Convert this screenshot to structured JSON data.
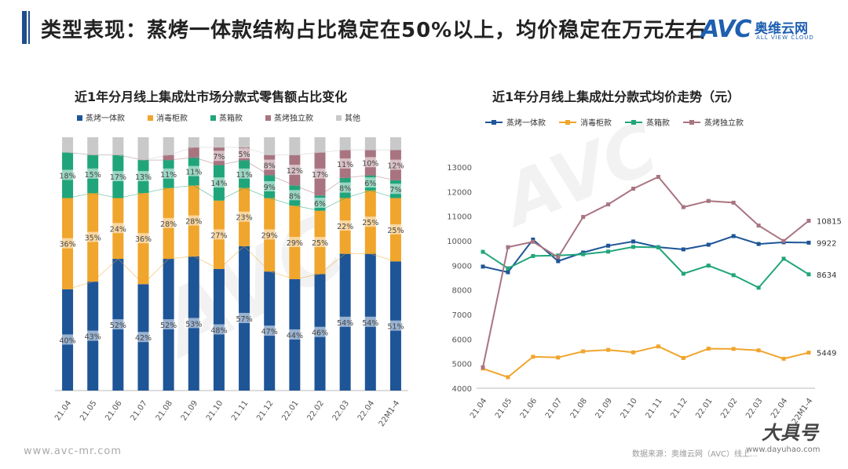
{
  "page": {
    "title": "类型表现：蒸烤一体款结构占比稳定在50%以上，均价稳定在万元左右",
    "footer_url": "www.avc-mr.com",
    "footer_source": "数据来源：奥维云网（AVC）线上...",
    "stamp_text": "大具号",
    "stamp_sub": "www.dayuhao.com"
  },
  "logo": {
    "avc": "AVC",
    "cn": "奥维云网",
    "sub": "ALL VIEW CLOUD"
  },
  "colors": {
    "s1": "#1e5597",
    "s2": "#f0a52c",
    "s3": "#20a57a",
    "s4": "#a87480",
    "s5": "#c9c9c9"
  },
  "chart_data": [
    {
      "type": "bar",
      "stacked": true,
      "percent": true,
      "title": "近1年分月线上集成灶市场分款式零售额占比变化",
      "categories": [
        "21.04",
        "21.05",
        "21.06",
        "21.07",
        "21.08",
        "21.09",
        "21.10",
        "21.11",
        "21.12",
        "22.01",
        "22.02",
        "22.03",
        "22.04",
        "22M1-4"
      ],
      "ylim": [
        0,
        100
      ],
      "legend_position": "top",
      "series": [
        {
          "name": "蒸烤一体款",
          "color": "#1e5597",
          "values": [
            40,
            43,
            52,
            42,
            52,
            53,
            48,
            57,
            47,
            44,
            46,
            54,
            54,
            51
          ],
          "labels": [
            "40%",
            "43%",
            "52%",
            "42%",
            "52%",
            "53%",
            "48%",
            "57%",
            "47%",
            "44%",
            "46%",
            "54%",
            "54%",
            "51%"
          ]
        },
        {
          "name": "消毒柜款",
          "color": "#f0a52c",
          "values": [
            36,
            35,
            24,
            36,
            28,
            28,
            27,
            23,
            29,
            29,
            25,
            22,
            25,
            25
          ],
          "labels": [
            "36%",
            "35%",
            "24%",
            "36%",
            "28%",
            "28%",
            "27%",
            "23%",
            "29%",
            "29%",
            "25%",
            "22%",
            "25%",
            "25%"
          ]
        },
        {
          "name": "蒸箱款",
          "color": "#20a57a",
          "values": [
            18,
            15,
            17,
            13,
            11,
            11,
            14,
            11,
            9,
            8,
            6,
            8,
            6,
            7
          ],
          "labels": [
            "18%",
            "15%",
            "17%",
            "13%",
            "11%",
            "11%",
            "14%",
            "11%",
            "9%",
            "8%",
            "6%",
            "8%",
            "6%",
            "7%"
          ]
        },
        {
          "name": "蒸烤独立款",
          "color": "#a87480",
          "values": [
            0,
            0,
            0,
            0,
            2,
            4,
            7,
            5,
            8,
            12,
            17,
            11,
            10,
            12
          ],
          "labels": [
            "",
            "",
            "",
            "",
            "",
            "",
            "7%",
            "5%",
            "8%",
            "12%",
            "17%",
            "11%",
            "10%",
            "12%"
          ]
        },
        {
          "name": "其他",
          "color": "#c9c9c9",
          "values": [
            6,
            7,
            7,
            9,
            7,
            4,
            4,
            4,
            7,
            7,
            6,
            5,
            5,
            5
          ],
          "labels": [
            "",
            "",
            "",
            "",
            "",
            "",
            "",
            "",
            "",
            "",
            "",
            "",
            "",
            ""
          ]
        }
      ]
    },
    {
      "type": "line",
      "title": "近1年分月线上集成灶分款式均价走势（元）",
      "categories": [
        "21.04",
        "21.05",
        "21.06",
        "21.07",
        "21.08",
        "21.09",
        "21.10",
        "21.11",
        "21.12",
        "22.01",
        "22.02",
        "22.03",
        "22.04",
        "22M1-4"
      ],
      "ylim": [
        4000,
        13000
      ],
      "yticks": [
        4000,
        5000,
        6000,
        7000,
        8000,
        9000,
        10000,
        11000,
        12000,
        13000
      ],
      "legend_position": "top",
      "series": [
        {
          "name": "蒸烤一体款",
          "color": "#1e5597",
          "values": [
            8950,
            8720,
            10050,
            9170,
            9520,
            9800,
            9970,
            9740,
            9650,
            9840,
            10190,
            9870,
            9940,
            9922
          ],
          "end_label": "9922"
        },
        {
          "name": "消毒柜款",
          "color": "#f0a52c",
          "values": [
            4800,
            4450,
            5280,
            5250,
            5500,
            5560,
            5460,
            5700,
            5230,
            5610,
            5600,
            5540,
            5200,
            5449
          ],
          "end_label": "5449"
        },
        {
          "name": "蒸箱款",
          "color": "#20a57a",
          "values": [
            9550,
            8880,
            9380,
            9400,
            9450,
            9560,
            9750,
            9730,
            8660,
            8990,
            8600,
            8090,
            9270,
            8634
          ],
          "end_label": "8634"
        },
        {
          "name": "蒸烤独立款",
          "color": "#a87480",
          "values": [
            4850,
            9740,
            9960,
            9330,
            10970,
            11480,
            12120,
            12600,
            11370,
            11620,
            11550,
            10620,
            9990,
            10815
          ],
          "end_label": "10815"
        }
      ]
    }
  ]
}
